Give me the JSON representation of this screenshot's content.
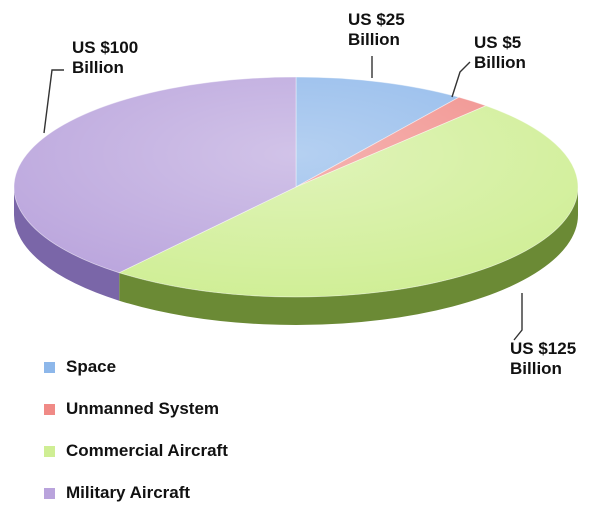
{
  "chart_data": {
    "type": "pie",
    "title": "",
    "unit": "US $ Billion",
    "legend_position": "bottom-left",
    "slices": [
      {
        "name": "Space",
        "value": 25,
        "label_line1": "US $25",
        "label_line2": "Billion",
        "color": "#8db7ea",
        "side_color": "#4f79b6"
      },
      {
        "name": "Unmanned System",
        "value": 5,
        "label_line1": "US $5",
        "label_line2": "Billion",
        "color": "#f08a86",
        "side_color": "#b8504d"
      },
      {
        "name": "Commercial Aircraft",
        "value": 125,
        "label_line1": "US $125",
        "label_line2": "Billion",
        "color": "#cfee94",
        "side_color": "#6b8a35"
      },
      {
        "name": "Military Aircraft",
        "value": 100,
        "label_line1": "US $100",
        "label_line2": "Billion",
        "color": "#b9a3dc",
        "side_color": "#7a66a8"
      }
    ]
  }
}
